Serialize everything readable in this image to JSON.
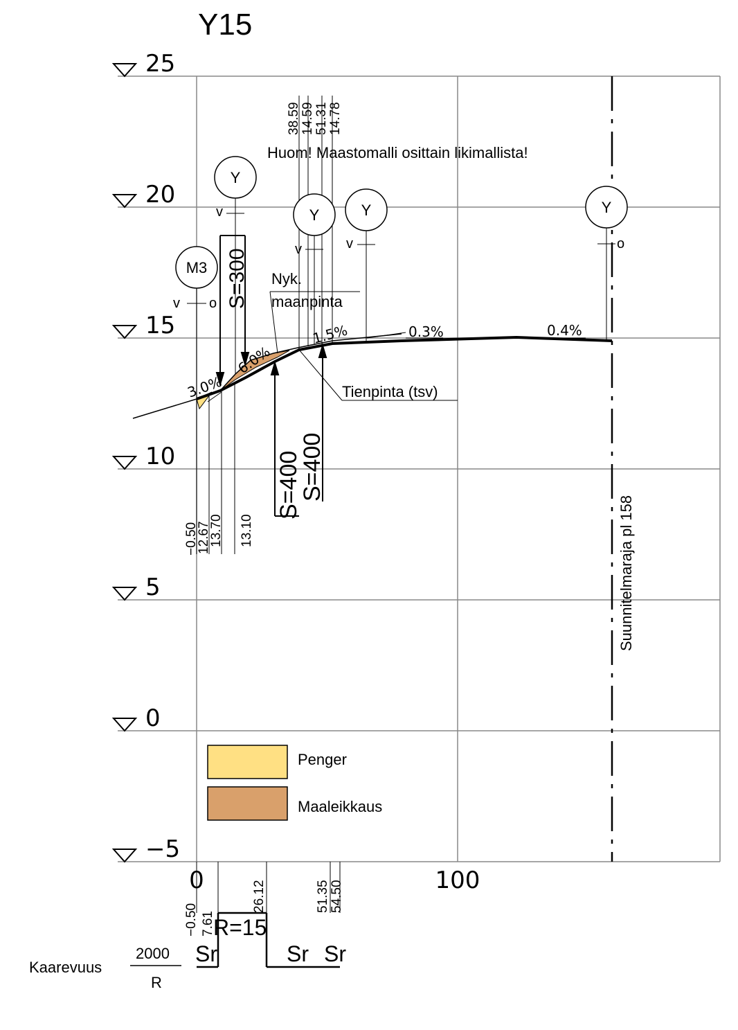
{
  "title": "Y15",
  "colors": {
    "penger": "#FFE083",
    "maaleikkaus": "#D9A06B",
    "grid": "#888888",
    "line": "#000000"
  },
  "elevations": [
    {
      "value": 25,
      "label": "25"
    },
    {
      "value": 20,
      "label": "20"
    },
    {
      "value": 15,
      "label": "15"
    },
    {
      "value": 10,
      "label": "10"
    },
    {
      "value": 5,
      "label": "5"
    },
    {
      "value": 0,
      "label": "0"
    },
    {
      "value": -5,
      "label": "−5"
    }
  ],
  "stations": [
    {
      "value": 0,
      "label": "0"
    },
    {
      "value": 100,
      "label": "100"
    }
  ],
  "note": "Huom! Maastomalli osittain likimallista!",
  "labels": {
    "nyk1": "Nyk.",
    "nyk2": "maanpinta",
    "tienpinta": "Tienpinta (tsv)",
    "plan_boundary": "Suunnitelmaraja pl 158",
    "curvature": "Kaarevuus",
    "curv_num": "2000",
    "curv_den": "R"
  },
  "slopes": {
    "s1": "3.0%",
    "s2": "6.0%",
    "s3": "1.5%",
    "s4": "0.3%",
    "s5": "0.4%"
  },
  "radii": {
    "s300": "S=300",
    "s400a": "S=400",
    "s400b": "S=400"
  },
  "markers": {
    "m3": "M3",
    "y": "Y",
    "v": "v",
    "o": "o"
  },
  "top_dims": [
    "38.59",
    "14.59",
    "51.31",
    "14.78"
  ],
  "left_dims": [
    "−0.50",
    "12.67",
    "13.70",
    "13.10"
  ],
  "bottom_dims": {
    "d1": "−0.50",
    "d2": "7.61",
    "d3": "26.12",
    "d4": "51.35",
    "d5": "54.50"
  },
  "curve_band": {
    "sr": "Sr",
    "r15": "R=15"
  },
  "legend": [
    {
      "label": "Penger",
      "color": "#FFE083"
    },
    {
      "label": "Maaleikkaus",
      "color": "#D9A06B"
    }
  ]
}
